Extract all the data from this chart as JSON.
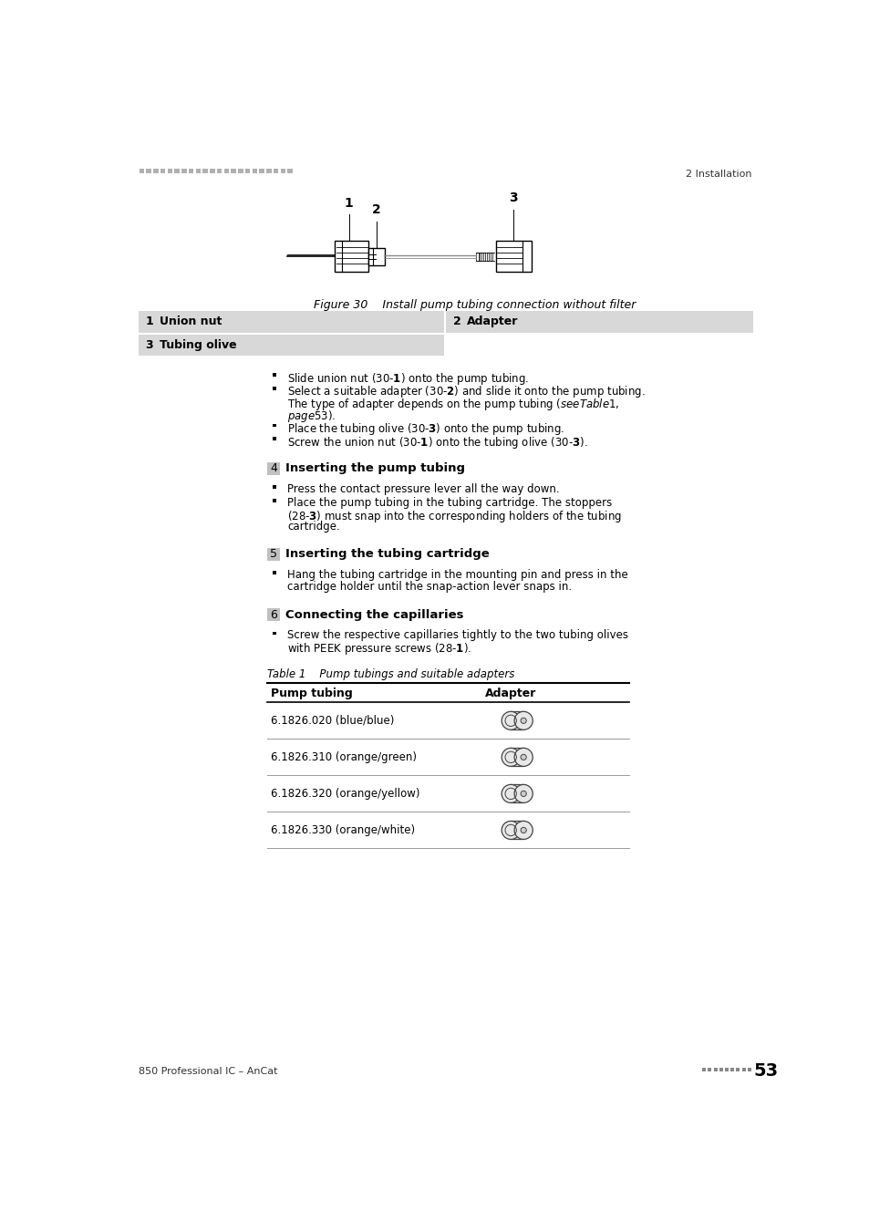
{
  "page_title_left": "850 Professional IC – AnCat",
  "page_title_right": "2 Installation",
  "page_number": "53",
  "figure_caption": "Figure 30    Install pump tubing connection without filter",
  "bg_color": "#ffffff",
  "text_color": "#000000",
  "step_box_color": "#c0c0c0",
  "legend_bg": "#d8d8d8",
  "header_dot_color": "#b0b0b0",
  "table_rows": [
    "6.1826.020 (blue/blue)",
    "6.1826.310 (orange/green)",
    "6.1826.320 (orange/yellow)",
    "6.1826.330 (orange/white)"
  ]
}
